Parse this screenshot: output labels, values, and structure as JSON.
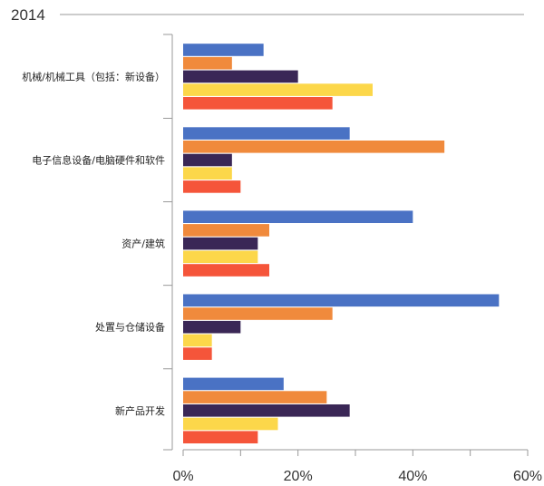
{
  "chart_data": {
    "type": "bar",
    "orientation": "horizontal",
    "title": "2014",
    "categories": [
      "机械/机械工具（包括：新设备）",
      "电子信息设备/电脑硬件和软件",
      "资产/建筑",
      "处置与仓储设备",
      "新产品开发"
    ],
    "series": [
      {
        "color": "#4a72c4",
        "values": [
          14,
          29,
          40,
          55,
          17.5
        ]
      },
      {
        "color": "#f08a3c",
        "values": [
          8.5,
          45.5,
          15,
          26,
          25
        ]
      },
      {
        "color": "#3a2756",
        "values": [
          20,
          8.5,
          13,
          10,
          29
        ]
      },
      {
        "color": "#fcd74a",
        "values": [
          33,
          8.5,
          13,
          5,
          16.5
        ]
      },
      {
        "color": "#f5553a",
        "values": [
          26,
          10,
          15,
          5,
          13
        ]
      }
    ],
    "xlim": [
      0,
      60
    ],
    "x_ticks": [
      0,
      20,
      40,
      60
    ],
    "x_tick_labels": [
      "0%",
      "20%",
      "40%",
      "60%"
    ],
    "grid": false,
    "legend": "none"
  }
}
